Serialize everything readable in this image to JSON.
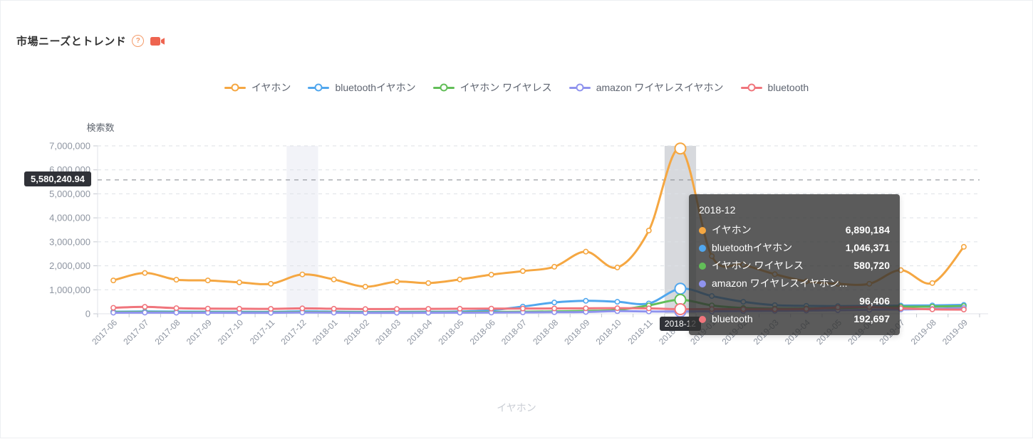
{
  "header": {
    "title": "市場ニーズとトレンド",
    "help_icon": "question-circle",
    "video_icon": "camcorder",
    "accent_color": "#ee6450"
  },
  "chart_data": {
    "type": "line",
    "ylabel": "検索数",
    "categories": [
      "2017-06",
      "2017-07",
      "2017-08",
      "2017-09",
      "2017-10",
      "2017-11",
      "2017-12",
      "2018-01",
      "2018-02",
      "2018-03",
      "2018-04",
      "2018-05",
      "2018-06",
      "2018-07",
      "2018-08",
      "2018-09",
      "2018-10",
      "2018-11",
      "2018-12",
      "2019-01",
      "2019-02",
      "2019-03",
      "2019-04",
      "2019-05",
      "2019-06",
      "2019-07",
      "2019-08",
      "2019-09"
    ],
    "series": [
      {
        "name": "イヤホン",
        "color": "#F5A742",
        "values": [
          1390000,
          1700000,
          1420000,
          1390000,
          1310000,
          1250000,
          1640000,
          1430000,
          1130000,
          1340000,
          1280000,
          1430000,
          1630000,
          1780000,
          1960000,
          2590000,
          1930000,
          3470000,
          6890184,
          2400000,
          2050000,
          1650000,
          1350000,
          1250000,
          1250000,
          1820000,
          1280000,
          2790000
        ]
      },
      {
        "name": "bluetoothイヤホン",
        "color": "#51A7EE",
        "values": [
          85000,
          95000,
          90000,
          85000,
          82000,
          80000,
          100000,
          90000,
          75000,
          80000,
          85000,
          95000,
          150000,
          300000,
          470000,
          540000,
          500000,
          430000,
          1046371,
          740000,
          500000,
          360000,
          330000,
          320000,
          330000,
          340000,
          350000,
          370000
        ]
      },
      {
        "name": "イヤホン ワイヤレス",
        "color": "#62BE58",
        "values": [
          65000,
          70000,
          65000,
          62000,
          60000,
          60000,
          75000,
          68000,
          58000,
          60000,
          62000,
          68000,
          75000,
          85000,
          100000,
          120000,
          160000,
          350000,
          580720,
          350000,
          240000,
          215000,
          220000,
          240000,
          270000,
          295000,
          300000,
          320000
        ]
      },
      {
        "name": "amazon ワイヤレスイヤホン",
        "color": "#8F93EE",
        "values": [
          45000,
          50000,
          46000,
          44000,
          42000,
          42000,
          55000,
          48000,
          40000,
          42000,
          44000,
          48000,
          52000,
          58000,
          65000,
          75000,
          110000,
          95000,
          96406,
          100000,
          115000,
          125000,
          135000,
          150000,
          165000,
          180000,
          205000,
          240000
        ]
      },
      {
        "name": "bluetooth",
        "color": "#F0757C",
        "values": [
          250000,
          290000,
          235000,
          215000,
          210000,
          205000,
          225000,
          210000,
          195000,
          200000,
          205000,
          210000,
          215000,
          218000,
          222000,
          228000,
          232000,
          225000,
          192697,
          195000,
          190000,
          188000,
          200000,
          265000,
          280000,
          230000,
          185000,
          175000
        ]
      }
    ],
    "ylim": [
      0,
      7000000
    ],
    "ytick_labels": [
      "0",
      "1,000,000",
      "2,000,000",
      "3,000,000",
      "4,000,000",
      "5,000,000",
      "6,000,000",
      "7,000,000"
    ],
    "grid": true,
    "legend_position": "top",
    "smooth": true,
    "mark_area_category": "2017-12",
    "hover_category": "2018-12",
    "hover_index": 18
  },
  "tooltip": {
    "header": "2018-12",
    "rows": [
      {
        "label": "イヤホン",
        "value": "6,890,184",
        "color": "#F5A742"
      },
      {
        "label": "bluetoothイヤホン",
        "value": "1,046,371",
        "color": "#51A7EE"
      },
      {
        "label": "イヤホン ワイヤレス",
        "value": "580,720",
        "color": "#62BE58"
      },
      {
        "label": "amazon ワイヤレスイヤホン...",
        "value": "96,406",
        "color": "#8F93EE"
      },
      {
        "label": "bluetooth",
        "value": "192,697",
        "color": "#F0757C"
      }
    ]
  },
  "axis_pointer": {
    "y_label": "5,580,240.94",
    "y_value": 5580240.94,
    "x_label": "2018-12"
  },
  "bottom_label": "イヤホン",
  "colors": {
    "grid_line": "#dde1e6",
    "axis_line": "#e0e3e8",
    "axis_text": "#8e95a1",
    "pointer_line": "#84878d",
    "mark_area": "#f2f3f8",
    "hover_band": "rgba(151,156,166,0.38)"
  }
}
